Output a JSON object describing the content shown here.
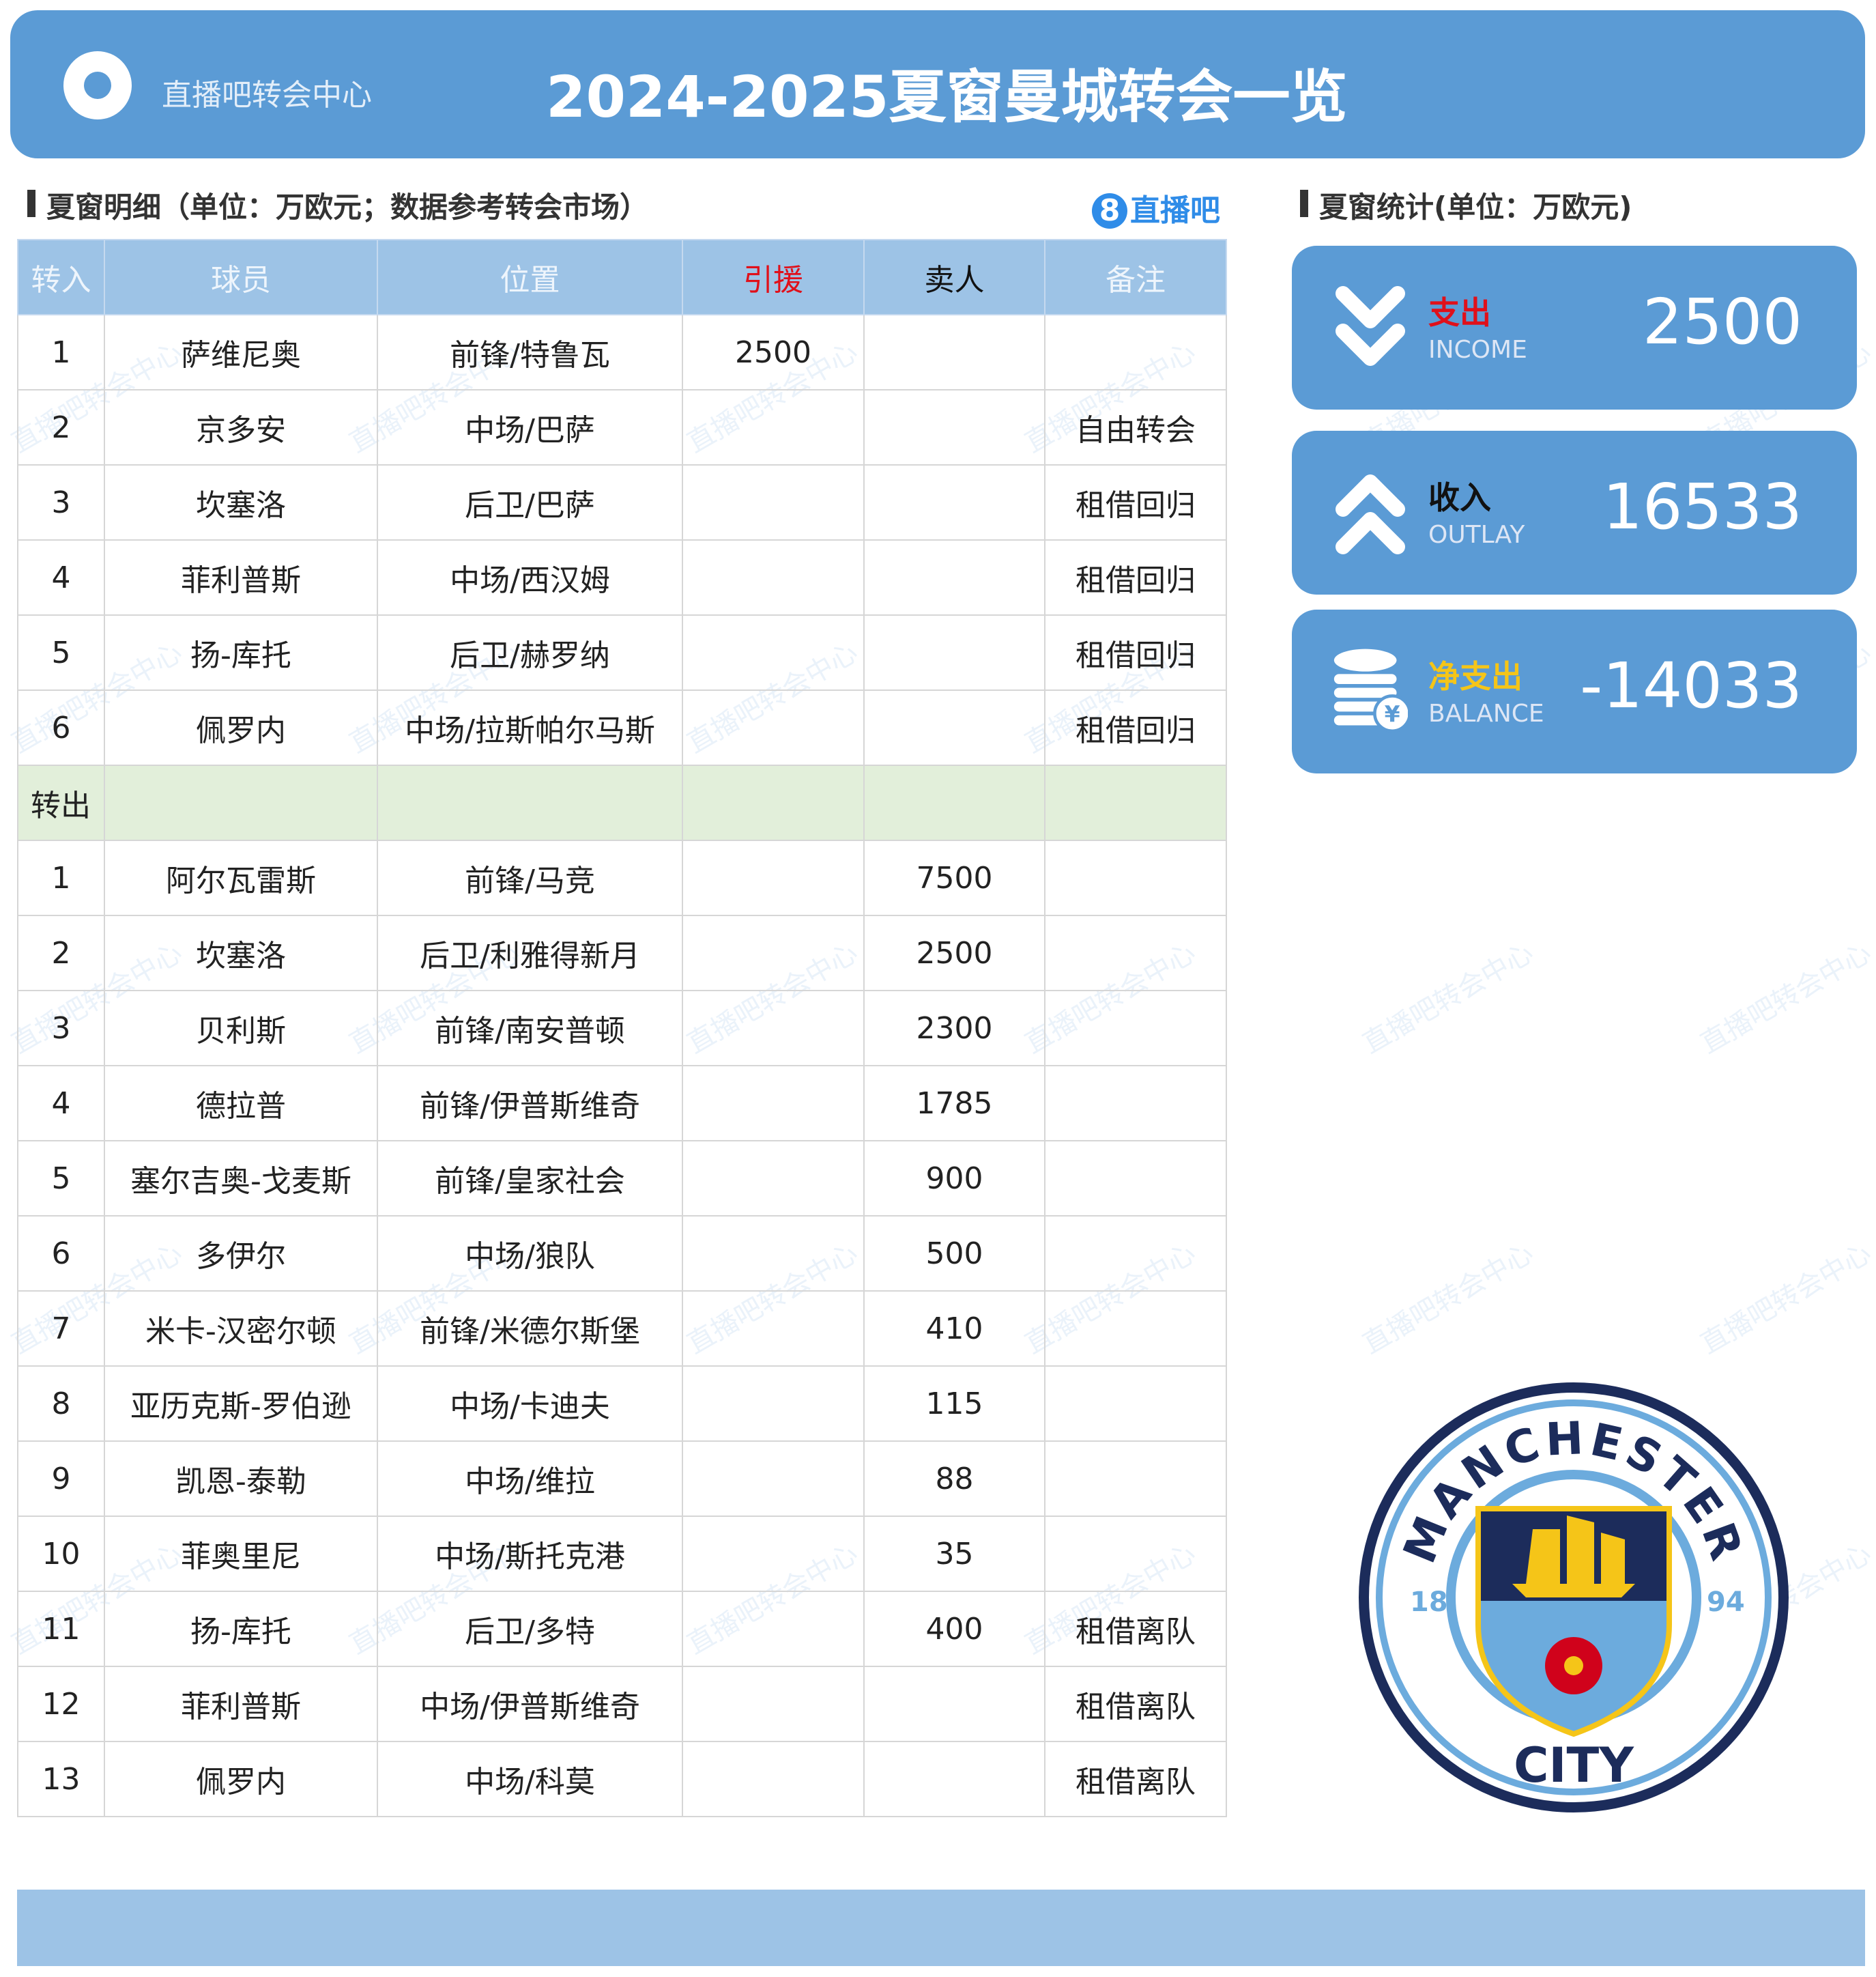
{
  "header": {
    "brand": "直播吧转会中心",
    "title": "2024-2025夏窗曼城转会一览"
  },
  "detail": {
    "title": "夏窗明细（单位：万欧元；数据参考转会市场）",
    "logo_badge": "8",
    "logo_text": "直播吧",
    "columns": [
      "转入",
      "球员",
      "位置",
      "引援",
      "卖人",
      "备注"
    ],
    "in_rows": [
      [
        "1",
        "萨维尼奥",
        "前锋/特鲁瓦",
        "2500",
        "",
        ""
      ],
      [
        "2",
        "京多安",
        "中场/巴萨",
        "",
        "",
        "自由转会"
      ],
      [
        "3",
        "坎塞洛",
        "后卫/巴萨",
        "",
        "",
        "租借回归"
      ],
      [
        "4",
        "菲利普斯",
        "中场/西汉姆",
        "",
        "",
        "租借回归"
      ],
      [
        "5",
        "扬-库托",
        "后卫/赫罗纳",
        "",
        "",
        "租借回归"
      ],
      [
        "6",
        "佩罗内",
        "中场/拉斯帕尔马斯",
        "",
        "",
        "租借回归"
      ]
    ],
    "out_label": "转出",
    "out_rows": [
      [
        "1",
        "阿尔瓦雷斯",
        "前锋/马竞",
        "",
        "7500",
        ""
      ],
      [
        "2",
        "坎塞洛",
        "后卫/利雅得新月",
        "",
        "2500",
        ""
      ],
      [
        "3",
        "贝利斯",
        "前锋/南安普顿",
        "",
        "2300",
        ""
      ],
      [
        "4",
        "德拉普",
        "前锋/伊普斯维奇",
        "",
        "1785",
        ""
      ],
      [
        "5",
        "塞尔吉奥-戈麦斯",
        "前锋/皇家社会",
        "",
        "900",
        ""
      ],
      [
        "6",
        "多伊尔",
        "中场/狼队",
        "",
        "500",
        ""
      ],
      [
        "7",
        "米卡-汉密尔顿",
        "前锋/米德尔斯堡",
        "",
        "410",
        ""
      ],
      [
        "8",
        "亚历克斯-罗伯逊",
        "中场/卡迪夫",
        "",
        "115",
        ""
      ],
      [
        "9",
        "凯恩-泰勒",
        "中场/维拉",
        "",
        "88",
        ""
      ],
      [
        "10",
        "菲奥里尼",
        "中场/斯托克港",
        "",
        "35",
        ""
      ],
      [
        "11",
        "扬-库托",
        "后卫/多特",
        "",
        "400",
        "租借离队"
      ],
      [
        "12",
        "菲利普斯",
        "中场/伊普斯维奇",
        "",
        "",
        "租借离队"
      ],
      [
        "13",
        "佩罗内",
        "中场/科莫",
        "",
        "",
        "租借离队"
      ]
    ]
  },
  "stats": {
    "title": "夏窗统计(单位：万欧元)",
    "cards": [
      {
        "label": "支出",
        "sub": "INCOME",
        "value": "2500",
        "label_color": "#e0101a",
        "icon": "double-chevron-down-icon"
      },
      {
        "label": "收入",
        "sub": "OUTLAY",
        "value": "16533",
        "label_color": "#111111",
        "icon": "double-chevron-up-icon"
      },
      {
        "label": "净支出",
        "sub": "BALANCE",
        "value": "-14033",
        "label_color": "#f5c518",
        "icon": "coins-yen-icon"
      }
    ]
  },
  "crest": {
    "top": "MANCHESTER",
    "bottom": "CITY",
    "left": "18",
    "right": "94"
  },
  "watermark": "直播吧转会中心",
  "colors": {
    "primary": "#5b9bd5",
    "table_header": "#9dc3e6",
    "section": "#e2efda"
  }
}
